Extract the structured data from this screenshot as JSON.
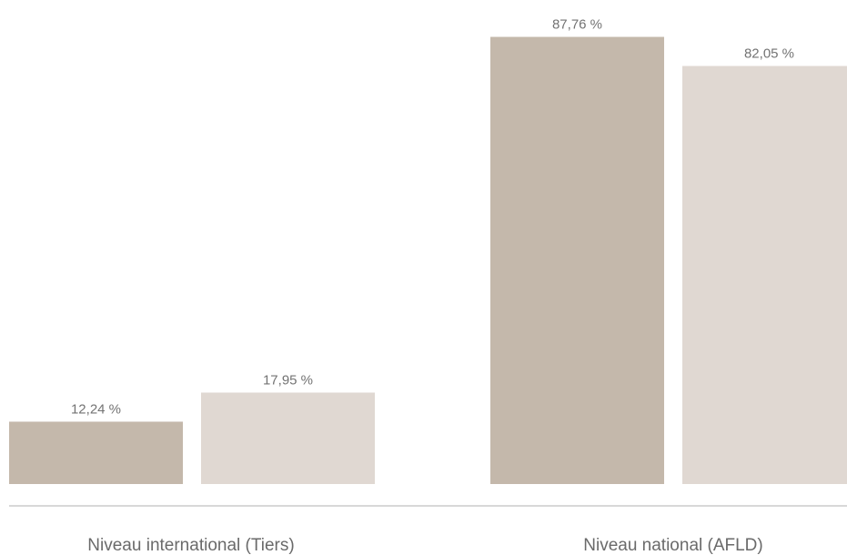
{
  "chart_data": {
    "type": "bar",
    "categories": [
      "Niveau international (Tiers)",
      "Niveau national (AFLD)"
    ],
    "series": [
      {
        "values": [
          12.24,
          87.76
        ],
        "labels": [
          "12,24 %",
          "87,76 %"
        ],
        "color": "#c4b8ab"
      },
      {
        "values": [
          17.95,
          82.05
        ],
        "labels": [
          "17,95 %",
          "82,05 %"
        ],
        "color": "#e0d8d2"
      }
    ],
    "ylim": [
      0,
      100
    ],
    "grid": false,
    "legend": "none",
    "baseline_color": "#b0b0b0"
  }
}
